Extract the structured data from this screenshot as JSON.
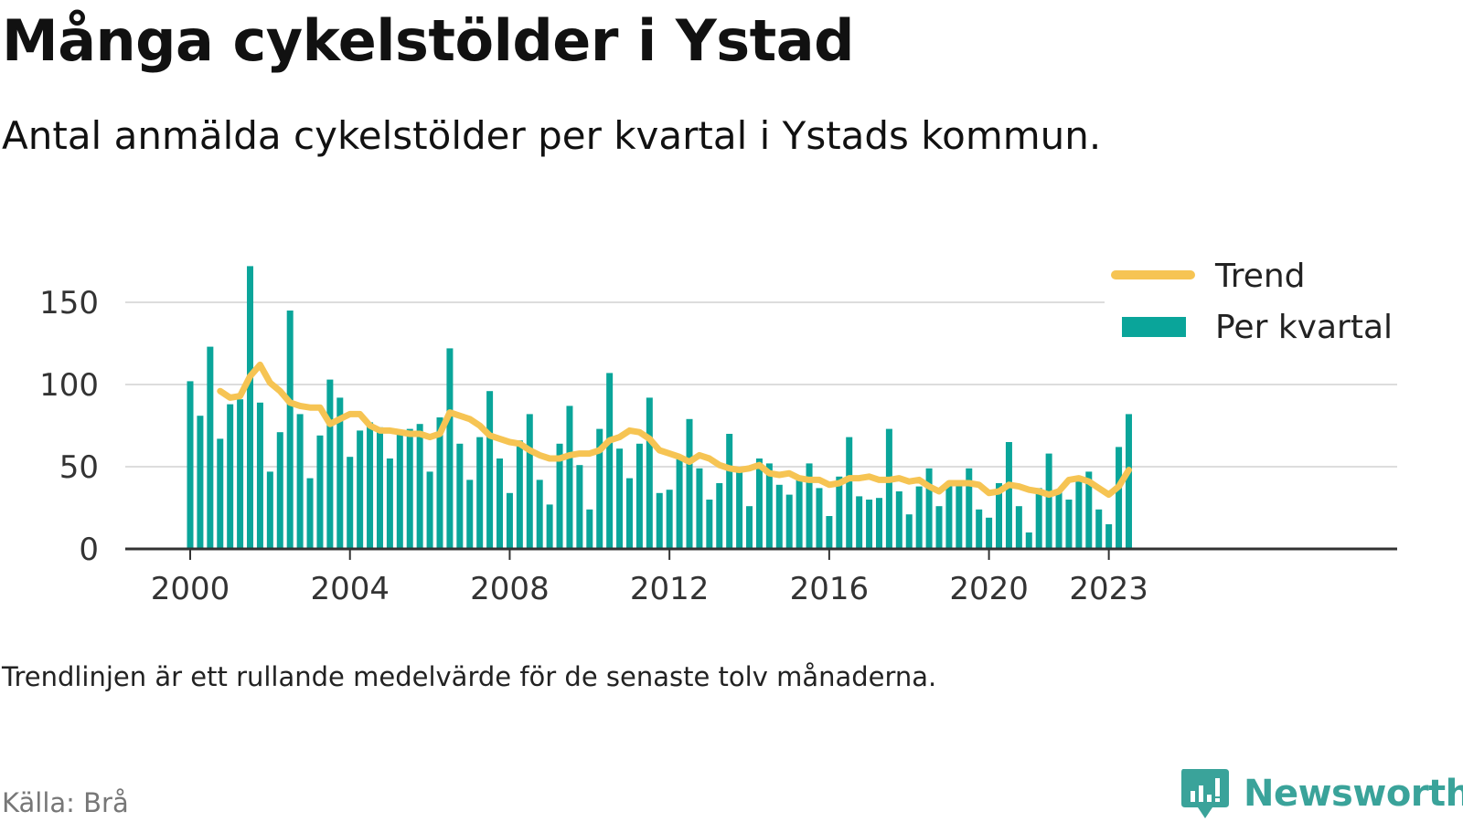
{
  "header": {
    "title": "Många cykelstölder i Ystad",
    "subtitle": "Antal anmälda cykelstölder per kvartal i Ystads kommun."
  },
  "footer": {
    "note": "Trendlinjen är ett rullande medelvärde för de senaste tolv månaderna.",
    "source": "Källa: Brå",
    "brand": "Newsworthy"
  },
  "colors": {
    "bars": "#0aa59a",
    "trend": "#f6c453",
    "grid": "#dddddd",
    "axis": "#333333"
  },
  "chart_data": {
    "type": "bar",
    "grid": true,
    "legend_position": "top-right",
    "ylim": [
      0,
      175
    ],
    "yticks": [
      0,
      50,
      100,
      150
    ],
    "xticks": [
      "2000",
      "2004",
      "2008",
      "2012",
      "2016",
      "2020",
      "2023"
    ],
    "x_start_year": 2000,
    "quarters_per_year": 4,
    "series": [
      {
        "name": "Per kvartal",
        "kind": "bar",
        "values": [
          102,
          81,
          123,
          67,
          88,
          91,
          172,
          89,
          47,
          71,
          145,
          82,
          43,
          69,
          103,
          92,
          56,
          72,
          77,
          74,
          55,
          70,
          73,
          76,
          47,
          80,
          122,
          64,
          42,
          68,
          96,
          55,
          34,
          66,
          82,
          42,
          27,
          64,
          87,
          51,
          24,
          73,
          107,
          61,
          43,
          64,
          92,
          34,
          36,
          56,
          79,
          49,
          30,
          40,
          70,
          48,
          26,
          55,
          52,
          39,
          33,
          44,
          52,
          37,
          20,
          44,
          68,
          32,
          30,
          31,
          73,
          35,
          21,
          38,
          49,
          26,
          40,
          41,
          49,
          24,
          19,
          40,
          65,
          26,
          10,
          37,
          58,
          36,
          30,
          41,
          47,
          24,
          15,
          62,
          82
        ]
      },
      {
        "name": "Trend",
        "kind": "line",
        "start_index": 3,
        "values": [
          96,
          92,
          93,
          105,
          112,
          101,
          96,
          89,
          87,
          86,
          86,
          76,
          79,
          82,
          82,
          75,
          72,
          72,
          71,
          70,
          70,
          68,
          70,
          83,
          81,
          79,
          75,
          69,
          67,
          65,
          64,
          60,
          57,
          55,
          55,
          57,
          58,
          58,
          60,
          66,
          68,
          72,
          71,
          67,
          60,
          58,
          56,
          53,
          57,
          55,
          51,
          49,
          48,
          49,
          51,
          46,
          45,
          46,
          43,
          42,
          42,
          39,
          40,
          43,
          43,
          44,
          42,
          42,
          43,
          41,
          42,
          38,
          35,
          40,
          40,
          40,
          39,
          34,
          35,
          39,
          38,
          36,
          35,
          33,
          35,
          42,
          43,
          41,
          37,
          33,
          38,
          48
        ]
      }
    ]
  }
}
